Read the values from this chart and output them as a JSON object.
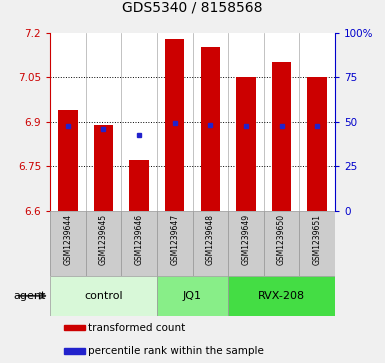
{
  "title": "GDS5340 / 8158568",
  "samples": [
    "GSM1239644",
    "GSM1239645",
    "GSM1239646",
    "GSM1239647",
    "GSM1239648",
    "GSM1239649",
    "GSM1239650",
    "GSM1239651"
  ],
  "bar_tops": [
    6.94,
    6.89,
    6.77,
    7.18,
    7.15,
    7.05,
    7.1,
    7.05
  ],
  "bar_bottom": 6.6,
  "percentile_values": [
    6.885,
    6.875,
    6.855,
    6.895,
    6.89,
    6.885,
    6.885,
    6.885
  ],
  "bar_color": "#cc0000",
  "percentile_color": "#2222cc",
  "ylim": [
    6.6,
    7.2
  ],
  "yticks_left": [
    6.6,
    6.75,
    6.9,
    7.05,
    7.2
  ],
  "ytick_right_pcts": [
    0,
    25,
    50,
    75,
    100
  ],
  "ytick_right_labels": [
    "0",
    "25",
    "50",
    "75",
    "100%"
  ],
  "groups": [
    {
      "label": "control",
      "start": 0,
      "end": 3,
      "color": "#d8f8d8"
    },
    {
      "label": "JQ1",
      "start": 3,
      "end": 5,
      "color": "#88ee88"
    },
    {
      "label": "RVX-208",
      "start": 5,
      "end": 8,
      "color": "#44dd44"
    }
  ],
  "agent_label": "agent",
  "legend_items": [
    {
      "color": "#cc0000",
      "label": "transformed count"
    },
    {
      "color": "#2222cc",
      "label": "percentile rank within the sample"
    }
  ],
  "sample_box_color": "#cccccc",
  "sample_box_edge": "#999999",
  "plot_bg": "#ffffff",
  "fig_bg": "#f0f0f0",
  "bar_width": 0.55,
  "title_fontsize": 10,
  "ytick_fontsize": 7.5,
  "sample_fontsize": 5.5,
  "group_fontsize": 8,
  "legend_fontsize": 7.5
}
